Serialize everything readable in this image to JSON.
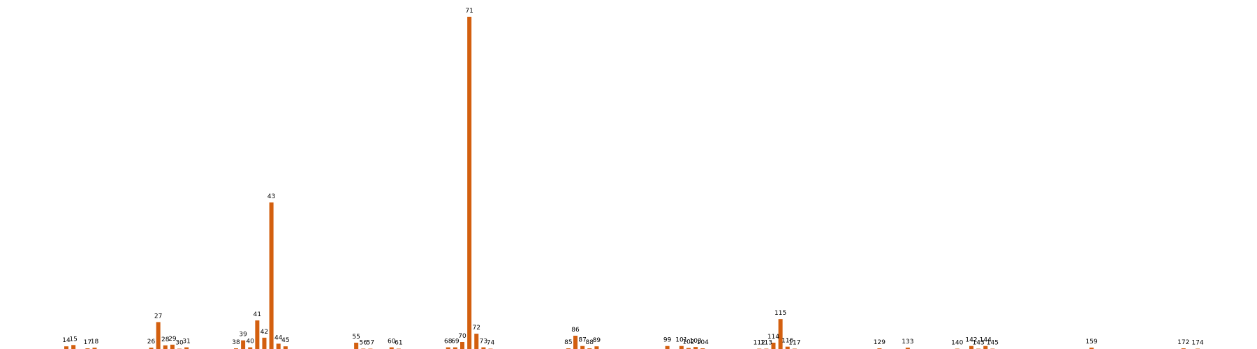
{
  "chart_data": {
    "type": "bar",
    "title": "",
    "xlabel": "",
    "ylabel": "",
    "bar_color": "#d35f0f",
    "background": "#ffffff",
    "axes_visible": false,
    "grid": false,
    "legend": "none",
    "ylim": [
      0,
      100
    ],
    "categories": [
      "14",
      "15",
      "17",
      "18",
      "26",
      "27",
      "28",
      "29",
      "30",
      "31",
      "38",
      "39",
      "40",
      "41",
      "42",
      "43",
      "44",
      "45",
      "55",
      "56",
      "57",
      "60",
      "61",
      "68",
      "69",
      "70",
      "71",
      "72",
      "73",
      "74",
      "85",
      "86",
      "87",
      "88",
      "89",
      "99",
      "101",
      "102",
      "103",
      "104",
      "112",
      "113",
      "114",
      "115",
      "116",
      "117",
      "129",
      "133",
      "140",
      "142",
      "143",
      "144",
      "145",
      "159",
      "172",
      "174"
    ],
    "values": [
      0.8,
      1.2,
      0.2,
      0.4,
      0.4,
      8.1,
      1.1,
      1.3,
      0.1,
      0.5,
      0.2,
      2.6,
      0.5,
      8.6,
      3.4,
      44.1,
      1.6,
      0.8,
      1.9,
      0.1,
      0.1,
      0.5,
      0.1,
      0.5,
      0.5,
      2.1,
      100,
      4.6,
      0.5,
      0.1,
      0.2,
      4.0,
      0.9,
      0.2,
      0.8,
      0.9,
      0.9,
      0.3,
      0.6,
      0.2,
      0.1,
      0.1,
      1.9,
      9.0,
      0.7,
      0.1,
      0.2,
      0.4,
      0.1,
      0.9,
      0.1,
      0.9,
      0.1,
      0.4,
      0.2,
      0.1
    ]
  }
}
